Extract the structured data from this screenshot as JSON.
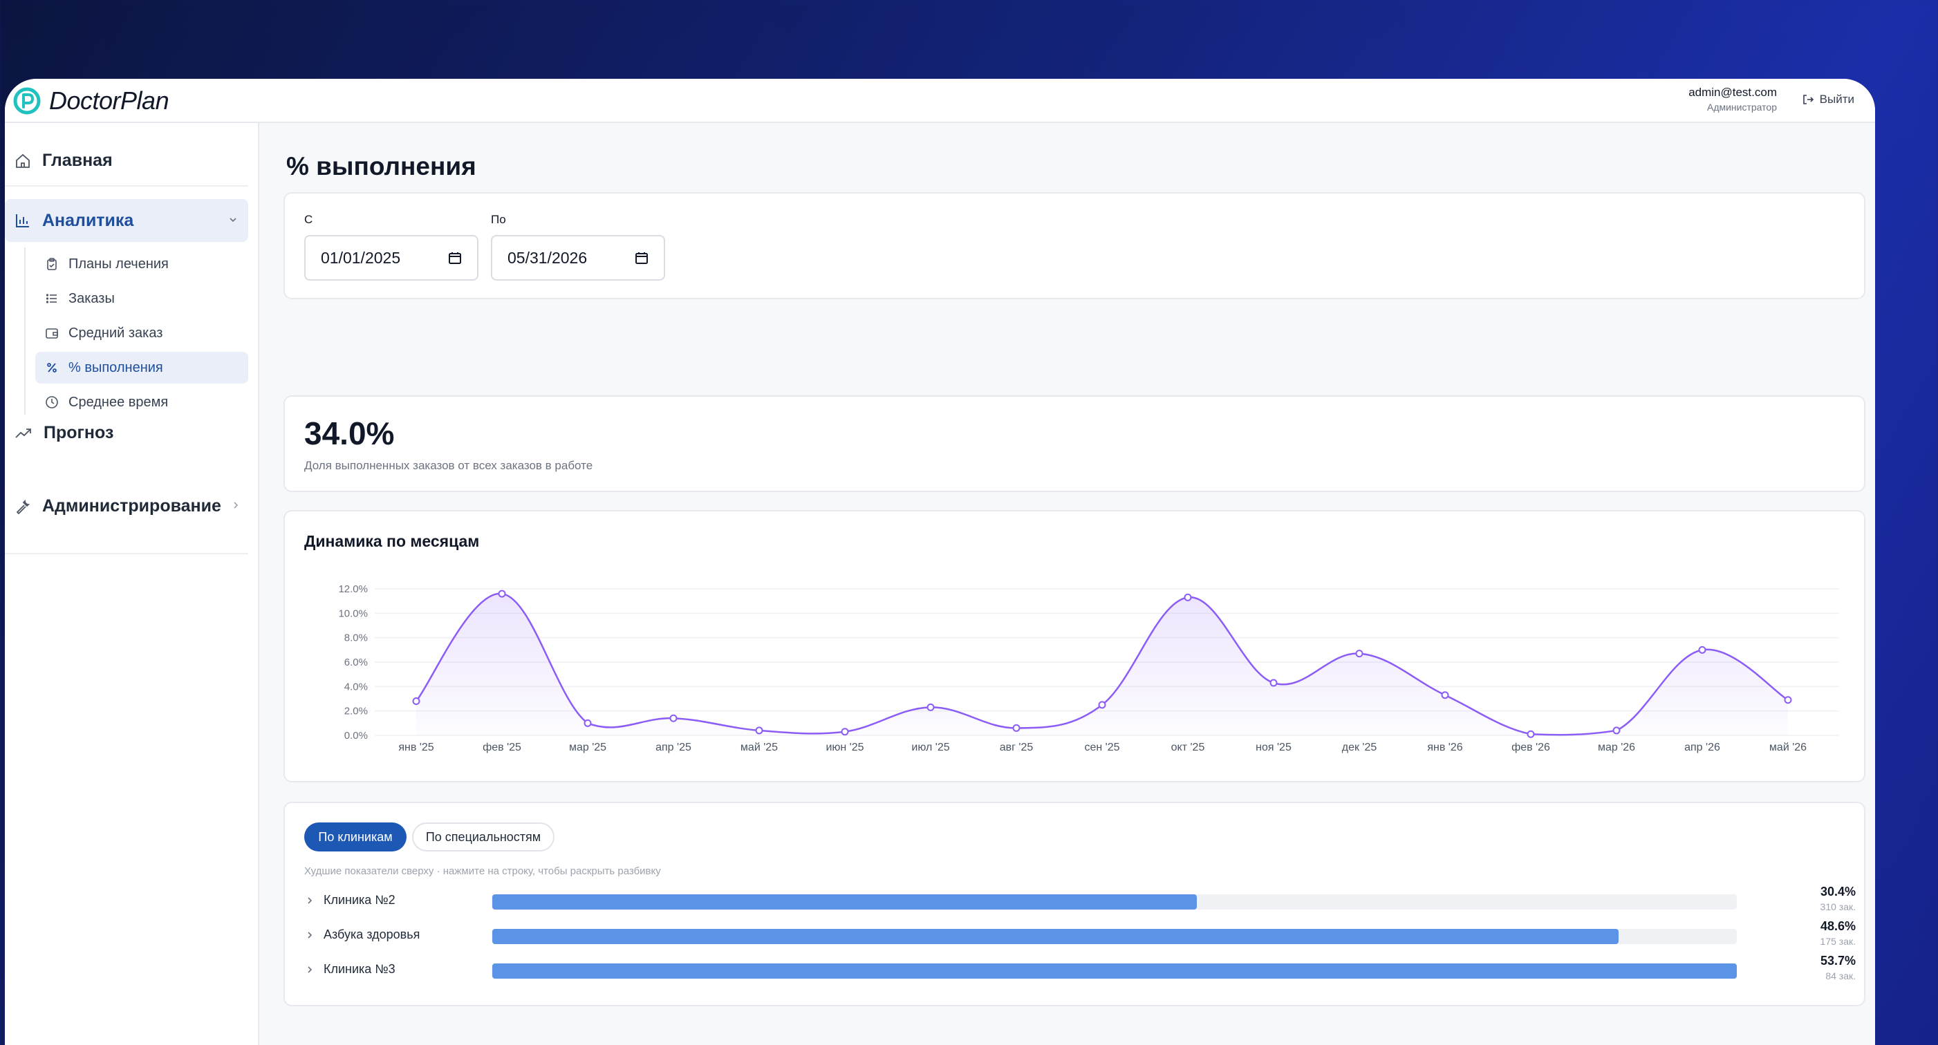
{
  "brand": {
    "name": "DoctorPlan",
    "accent": "#21c1c0"
  },
  "user": {
    "email": "admin@test.com",
    "role": "Администратор",
    "logout_label": "Выйти"
  },
  "sidebar": {
    "home": "Главная",
    "analytics": {
      "label": "Аналитика",
      "items": [
        {
          "label": "Планы лечения",
          "icon": "clipboard-icon"
        },
        {
          "label": "Заказы",
          "icon": "list-icon"
        },
        {
          "label": "Средний заказ",
          "icon": "wallet-icon"
        },
        {
          "label": "% выполнения",
          "icon": "percent-icon",
          "active": true
        },
        {
          "label": "Среднее время",
          "icon": "clock-icon"
        }
      ]
    },
    "forecast": "Прогноз",
    "admin": "Администрирование"
  },
  "page": {
    "title": "% выполнения"
  },
  "filters": {
    "from_label": "С",
    "from_value": "01/01/2025",
    "to_label": "По",
    "to_value": "05/31/2026"
  },
  "kpi": {
    "value": "34.0%",
    "description": "Доля выполненных заказов от всех заказов в работе"
  },
  "chart_card": {
    "title": "Динамика по месяцам"
  },
  "chart_data": {
    "type": "area",
    "title": "Динамика по месяцам",
    "categories": [
      "янв '25",
      "фев '25",
      "мар '25",
      "апр '25",
      "май '25",
      "июн '25",
      "июл '25",
      "авг '25",
      "сен '25",
      "окт '25",
      "ноя '25",
      "дек '25",
      "янв '26",
      "фев '26",
      "мар '26",
      "апр '26",
      "май '26"
    ],
    "series": [
      {
        "values": [
          2.8,
          11.6,
          1.0,
          1.4,
          0.4,
          0.3,
          2.3,
          0.6,
          2.5,
          11.3,
          4.3,
          6.7,
          3.3,
          0.1,
          0.4,
          7.0,
          2.9
        ]
      }
    ],
    "y_ticks": [
      "0.0%",
      "2.0%",
      "4.0%",
      "6.0%",
      "8.0%",
      "10.0%",
      "12.0%"
    ],
    "ylim": [
      0,
      12
    ],
    "grid": true,
    "line_color": "#8b5cf6"
  },
  "breakdown": {
    "tabs": [
      "По клиникам",
      "По специальностям"
    ],
    "hint": "Худшие показатели сверху · нажмите на строку, чтобы раскрыть разбивку",
    "rows": [
      {
        "name": "Клиника №2",
        "pct": "30.4%",
        "count": "310 зак.",
        "fill": 0.566
      },
      {
        "name": "Азбука здоровья",
        "pct": "48.6%",
        "count": "175 зак.",
        "fill": 0.905
      },
      {
        "name": "Клиника №3",
        "pct": "53.7%",
        "count": "84 зак.",
        "fill": 1.0
      }
    ],
    "bar_color": "#5b93e6"
  }
}
